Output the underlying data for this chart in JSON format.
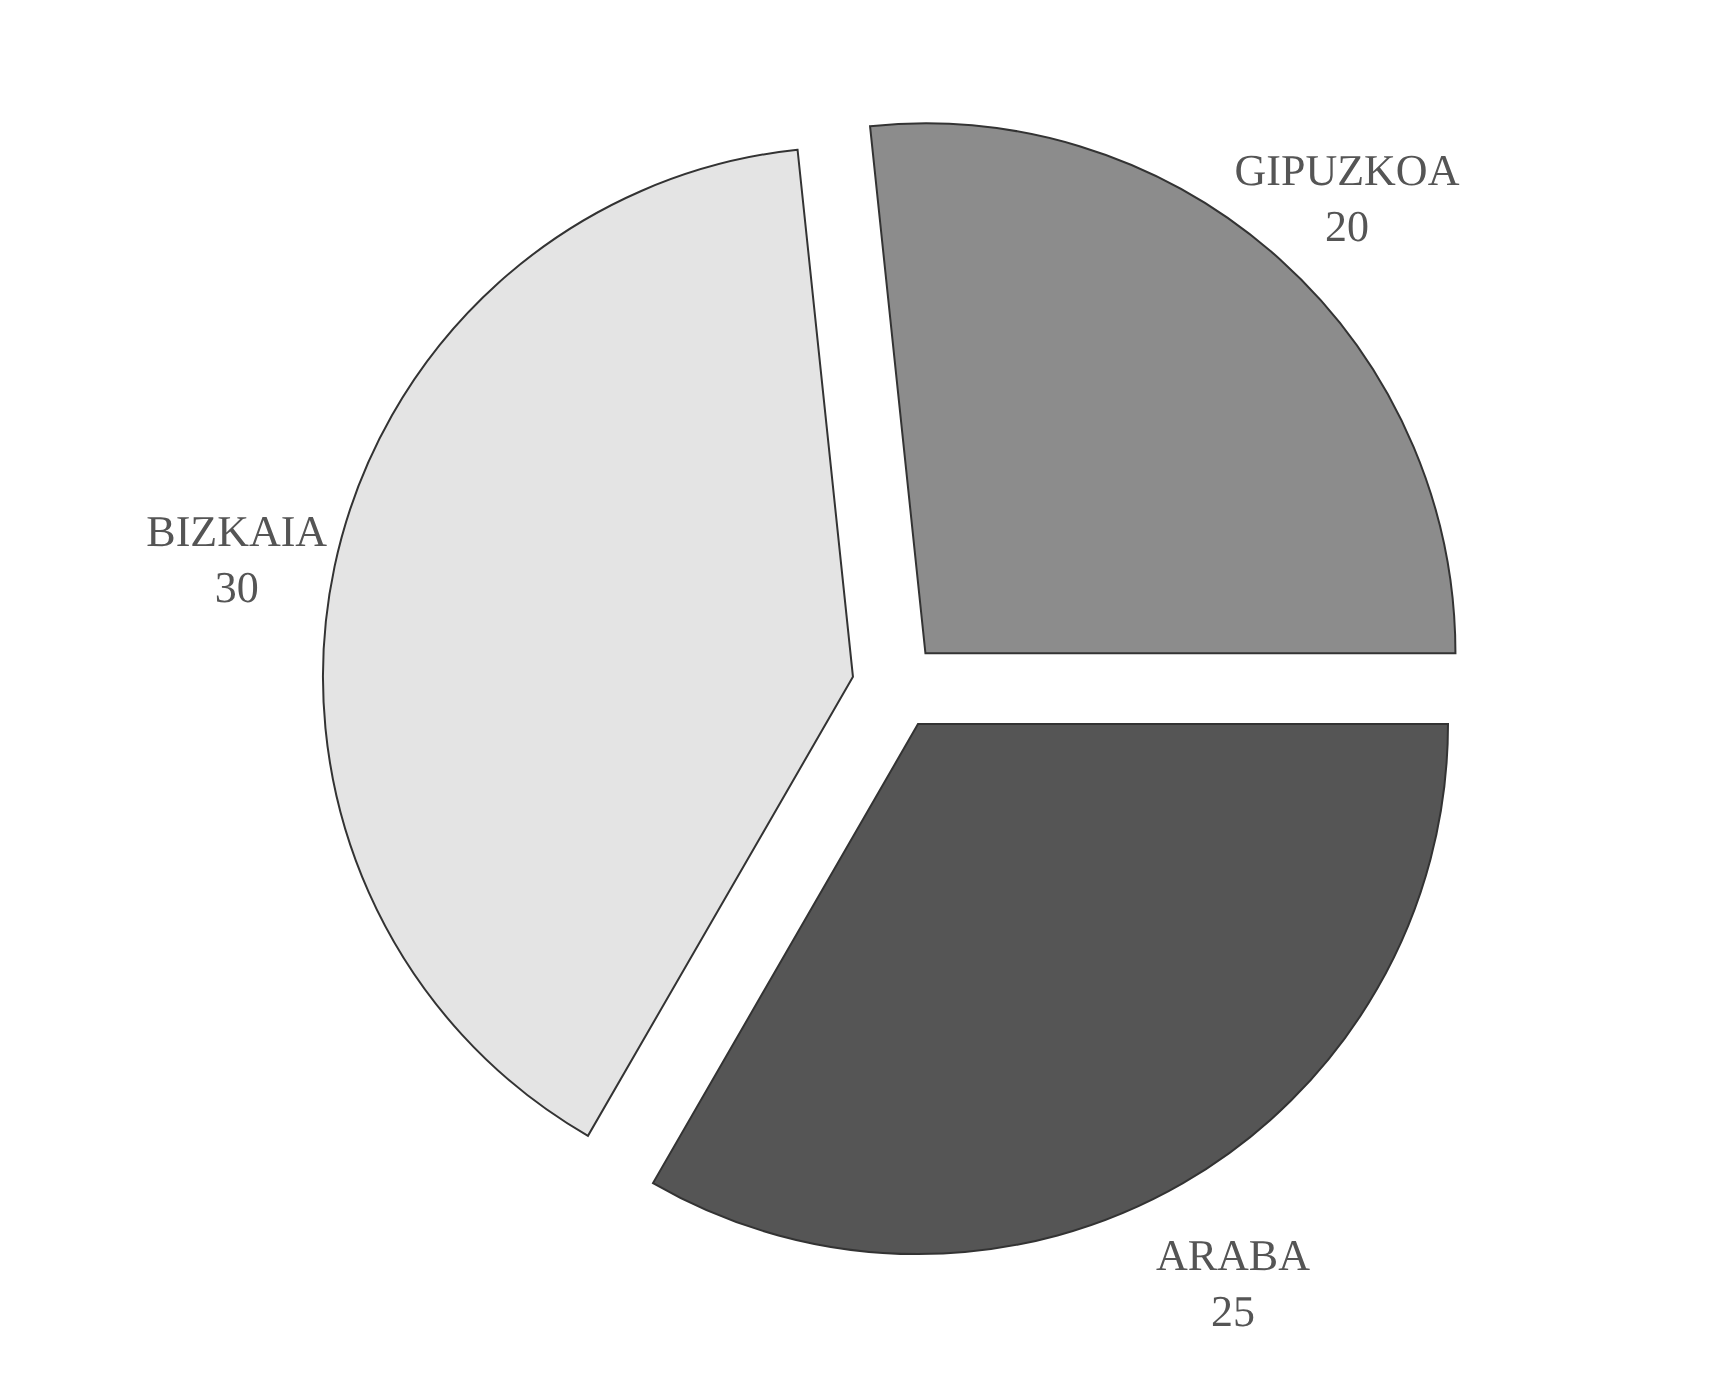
{
  "chart_data": {
    "type": "pie",
    "categories": [
      "GIPUZKOA",
      "ARABA",
      "BIZKAIA"
    ],
    "values": [
      20,
      25,
      30
    ],
    "colors": [
      "#8c8c8c",
      "#555555",
      "#e4e4e4"
    ],
    "data_labels": true
  }
}
